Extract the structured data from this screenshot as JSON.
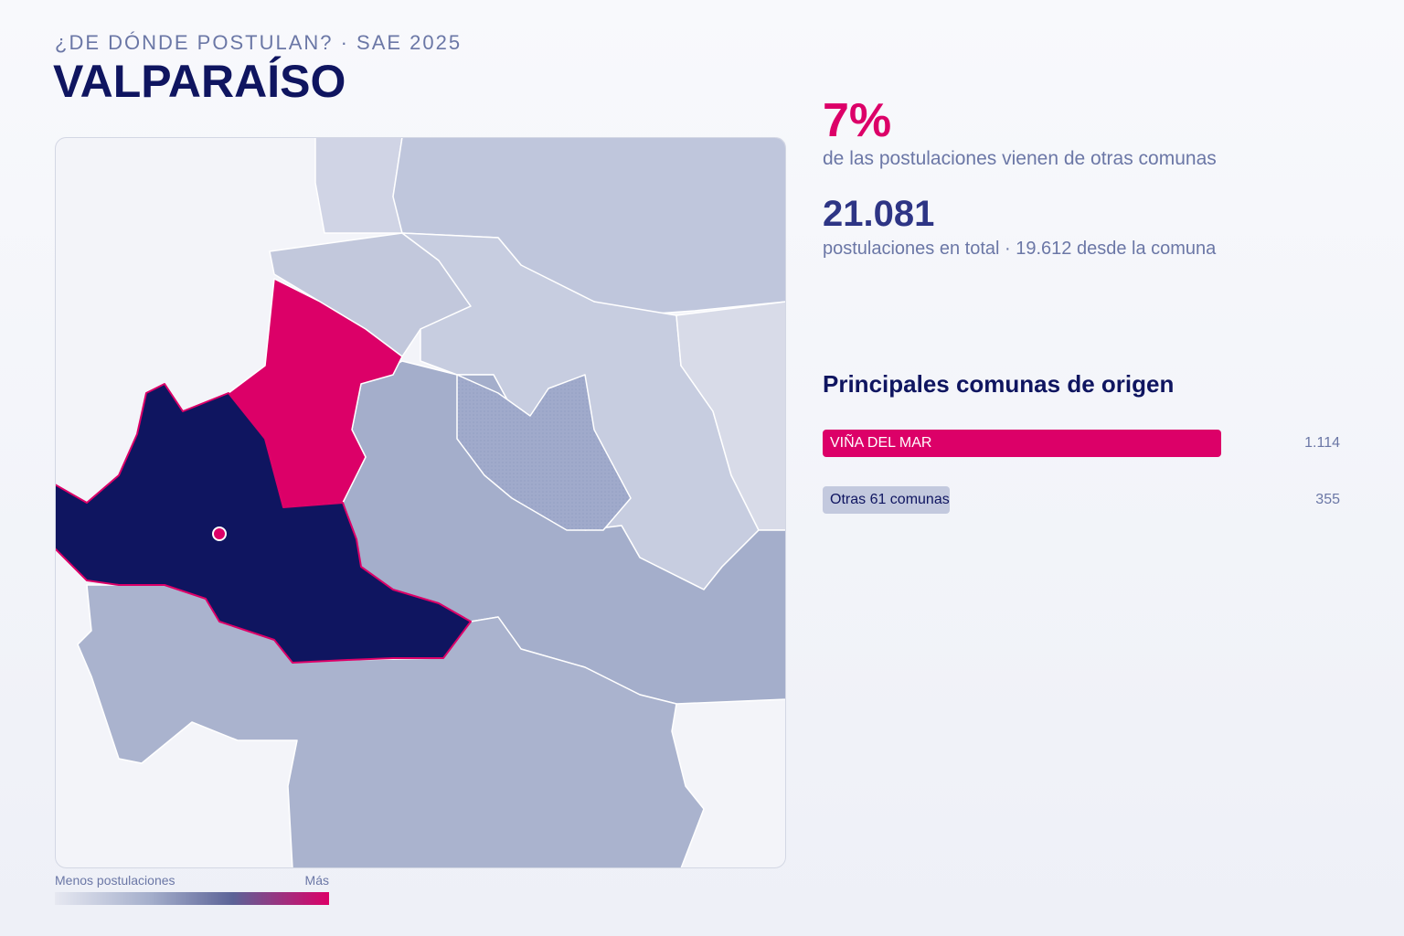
{
  "header": {
    "subtitle": "¿DE DÓNDE POSTULAN? · SAE 2025",
    "title": "VALPARAÍSO"
  },
  "stats": {
    "share": "7%",
    "share_caption": "de las postulaciones vienen de otras comunas",
    "total": "21.081",
    "total_caption": "postulaciones en total · 19.612 desde la comuna"
  },
  "legend": {
    "low": "Menos postulaciones",
    "high": "Más"
  },
  "chart_data": {
    "type": "bar",
    "title": "Principales comunas de origen",
    "categories": [
      "VIÑA DEL MAR",
      "Otras 61 comunas"
    ],
    "values": [
      1114,
      355
    ],
    "value_labels": [
      "1.114",
      "355"
    ],
    "colors": [
      "#dc0068",
      "#c3c9de"
    ]
  }
}
